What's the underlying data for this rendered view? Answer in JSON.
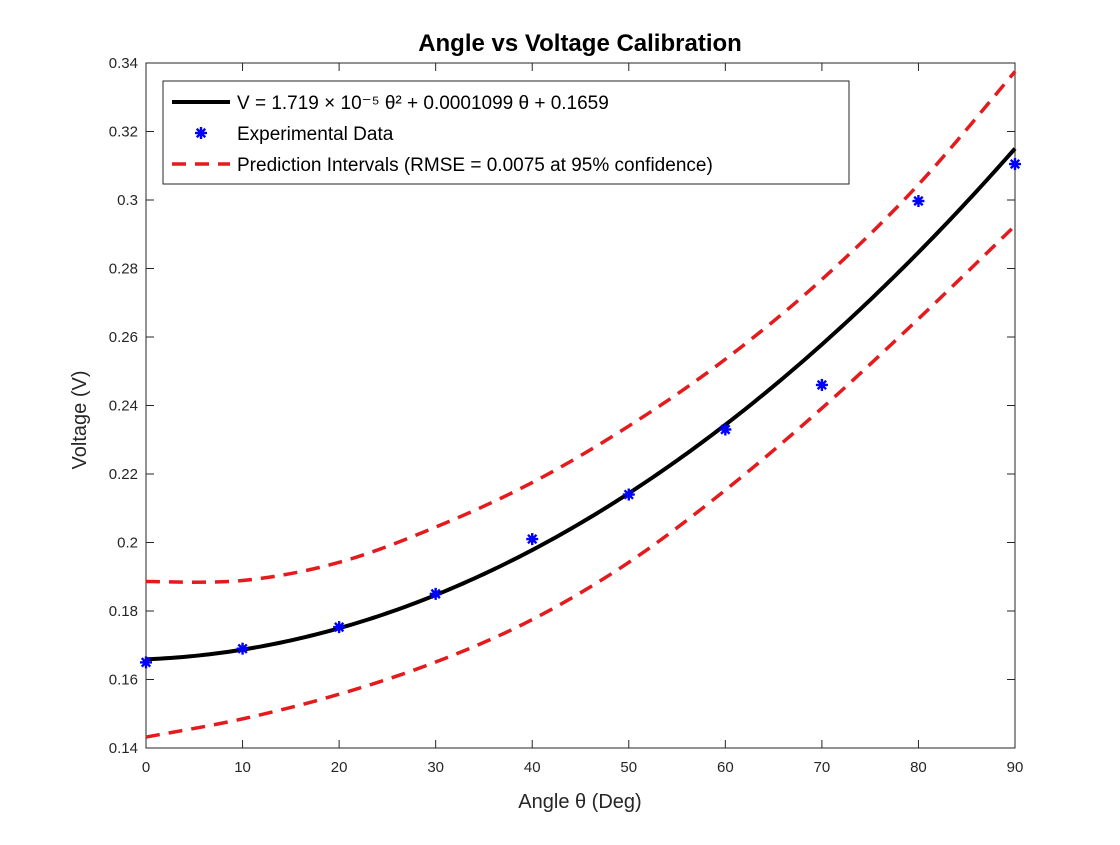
{
  "chart_data": {
    "type": "scatter",
    "title": "Angle vs Voltage Calibration",
    "xlabel": "Angle θ (Deg)",
    "ylabel": "Voltage (V)",
    "xlim": [
      0,
      90
    ],
    "ylim": [
      0.14,
      0.34
    ],
    "xticks": [
      "0",
      "10",
      "20",
      "30",
      "40",
      "50",
      "60",
      "70",
      "80",
      "90"
    ],
    "yticks": [
      "0.14",
      "0.16",
      "0.18",
      "0.2",
      "0.22",
      "0.24",
      "0.26",
      "0.28",
      "0.3",
      "0.32",
      "0.34"
    ],
    "grid": false,
    "legend_position": "top-left",
    "fit": {
      "label": "V = 1.719 × 10⁻⁵ θ² + 0.0001099 θ + 0.1659",
      "coefficients": {
        "a": 1.719e-05,
        "b": 0.0001099,
        "c": 0.1659
      }
    },
    "data_points": {
      "label": "Experimental Data",
      "x": [
        0,
        10,
        20,
        30,
        40,
        50,
        60,
        70,
        80,
        90
      ],
      "y": [
        0.165,
        0.169,
        0.1753,
        0.185,
        0.201,
        0.214,
        0.233,
        0.246,
        0.2997,
        0.3105
      ]
    },
    "prediction_intervals": {
      "label": "Prediction Intervals (RMSE = 0.0075 at 95% confidence)",
      "x": [
        0,
        10,
        20,
        30,
        40,
        50,
        60,
        70,
        80,
        90
      ],
      "upper": [
        0.1886,
        0.1889,
        0.1942,
        0.2045,
        0.2175,
        0.234,
        0.2535,
        0.2768,
        0.3045,
        0.3375
      ],
      "lower": [
        0.1432,
        0.1485,
        0.1557,
        0.1651,
        0.1775,
        0.1942,
        0.2153,
        0.2392,
        0.2653,
        0.2925
      ]
    },
    "colors": {
      "fit": "#000000",
      "data": "#0000ff",
      "interval": "#e41a1c"
    }
  }
}
